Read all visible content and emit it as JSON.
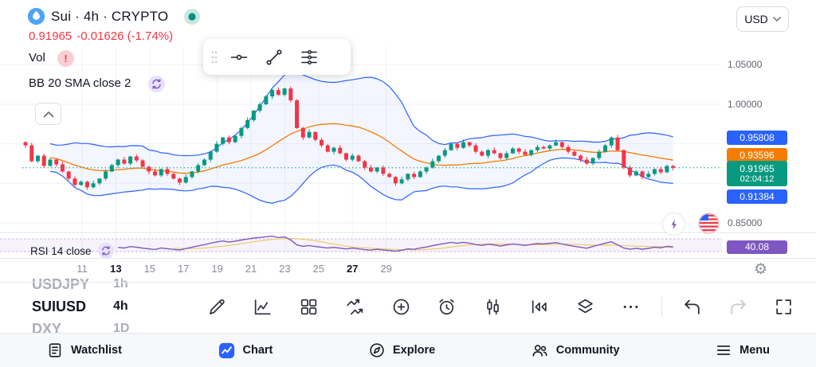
{
  "header": {
    "symbol": "Sui · 4h · CRYPTO",
    "price": "0.91965",
    "change": "-0.01626 (-1.74%)",
    "vol_label": "Vol",
    "vol_status": "!",
    "bb_label": "BB 20 SMA close 2",
    "currency": "USD"
  },
  "colors": {
    "up": "#089981",
    "down": "#f23645",
    "band": "#2962ff",
    "basis": "#f57c00",
    "rsi": "#7e57c2",
    "rsi_ma": "#f0c24b",
    "grid": "#f0f2f7",
    "accent": "#2962ff"
  },
  "price_scale": {
    "labels": [
      {
        "text": "1.05000",
        "price": 1.05
      },
      {
        "text": "1.00000",
        "price": 1.0
      },
      {
        "text": "0.85000",
        "price": 0.85
      }
    ],
    "badges": [
      {
        "text": "0.95808",
        "price": 0.95808,
        "color": "#2962ff"
      },
      {
        "text": "0.93596",
        "price": 0.93596,
        "color": "#f57c00"
      },
      {
        "text": "0.91965",
        "countdown": "02:04:12",
        "price": 0.91965,
        "color": "#089981"
      },
      {
        "text": "0.91384",
        "price": 0.91384,
        "color": "#2962ff"
      }
    ]
  },
  "x_axis": {
    "ticks": [
      {
        "label": "11"
      },
      {
        "label": "13",
        "emphasis": true
      },
      {
        "label": "15"
      },
      {
        "label": "17"
      },
      {
        "label": "19"
      },
      {
        "label": "21"
      },
      {
        "label": "23"
      },
      {
        "label": "25"
      },
      {
        "label": "27",
        "emphasis": true
      },
      {
        "label": "29"
      }
    ]
  },
  "rsi_pane": {
    "label": "RSI 14 close",
    "badge": "40.08",
    "color": "#7e57c2"
  },
  "chart_data": {
    "type": "candlestick",
    "symbol": "SUIUSD",
    "interval": "4h",
    "title": "Sui / U.S. Dollar 4h",
    "overlays": [
      "Bollinger Bands: 20 SMA close, 2 stdev"
    ],
    "lower_indicator": "RSI 14 close",
    "y_axis_range": [
      0.85,
      1.07
    ],
    "x_axis_days": [
      "11",
      "13",
      "15",
      "17",
      "19",
      "21",
      "23",
      "25",
      "27",
      "29"
    ],
    "last_price": 0.91965,
    "bb_upper_last": 0.95808,
    "bb_basis_last": 0.93596,
    "bb_lower_last": 0.91384,
    "rsi_last": 40.08,
    "first_open": 0.952,
    "closes": [
      0.948,
      0.928,
      0.935,
      0.922,
      0.93,
      0.924,
      0.915,
      0.906,
      0.898,
      0.902,
      0.895,
      0.9,
      0.906,
      0.915,
      0.923,
      0.93,
      0.925,
      0.934,
      0.929,
      0.921,
      0.915,
      0.91,
      0.918,
      0.912,
      0.906,
      0.901,
      0.908,
      0.915,
      0.923,
      0.93,
      0.94,
      0.95,
      0.958,
      0.952,
      0.96,
      0.97,
      0.98,
      0.992,
      1.0,
      1.01,
      1.018,
      1.012,
      1.02,
      1.005,
      0.97,
      0.958,
      0.965,
      0.955,
      0.948,
      0.94,
      0.945,
      0.938,
      0.93,
      0.935,
      0.928,
      0.92,
      0.915,
      0.92,
      0.912,
      0.908,
      0.9,
      0.905,
      0.912,
      0.908,
      0.915,
      0.92,
      0.928,
      0.935,
      0.942,
      0.95,
      0.945,
      0.952,
      0.948,
      0.94,
      0.935,
      0.942,
      0.938,
      0.932,
      0.938,
      0.944,
      0.94,
      0.936,
      0.942,
      0.946,
      0.944,
      0.948,
      0.952,
      0.946,
      0.94,
      0.935,
      0.93,
      0.925,
      0.932,
      0.94,
      0.948,
      0.958,
      0.942,
      0.92,
      0.91,
      0.915,
      0.908,
      0.912,
      0.918,
      0.914,
      0.922,
      0.91965
    ]
  },
  "tickers": [
    {
      "symbol": "USDJPY",
      "interval": "1h",
      "active": false
    },
    {
      "symbol": "SUIUSD",
      "interval": "4h",
      "active": true
    },
    {
      "symbol": "DXY",
      "interval": "1D",
      "active": false
    }
  ],
  "floating_toolbar": {
    "icons": [
      "drag-handle",
      "horizontal-line-icon",
      "trend-line-icon",
      "parallel-lines-icon"
    ]
  },
  "chart_toolbar": {
    "icons": [
      "draw-icon",
      "indicators-icon",
      "layouts-icon",
      "compare-icon",
      "add-icon",
      "alert-icon",
      "candles-icon",
      "replay-icon",
      "objects-icon",
      "more-icon",
      "separator",
      "undo-icon",
      "redo-icon",
      "fullscreen-icon"
    ]
  },
  "quick_icons": [
    "lightning-icon",
    "us-flag-icon"
  ],
  "bottom_nav": {
    "items": [
      {
        "label": "Watchlist",
        "icon": "watchlist-icon",
        "active": false
      },
      {
        "label": "Chart",
        "icon": "chart-icon",
        "active": true
      },
      {
        "label": "Explore",
        "icon": "explore-icon",
        "active": false
      },
      {
        "label": "Community",
        "icon": "community-icon",
        "active": false
      },
      {
        "label": "Menu",
        "icon": "menu-icon",
        "active": false
      }
    ]
  }
}
